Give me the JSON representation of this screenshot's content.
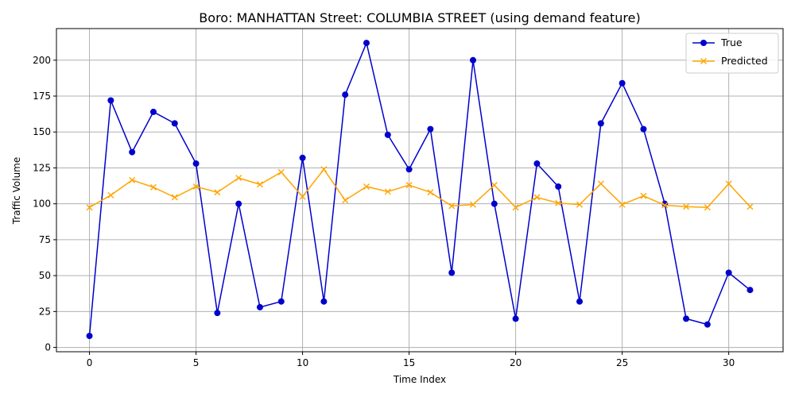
{
  "chart_data": {
    "type": "line",
    "title": "Boro: MANHATTAN Street: COLUMBIA STREET (using demand feature)",
    "xlabel": "Time Index",
    "ylabel": "Traffic Volume",
    "xlim": [
      -1.55,
      32.55
    ],
    "ylim": [
      -3,
      222
    ],
    "xticks": [
      0,
      5,
      10,
      15,
      20,
      25,
      30
    ],
    "yticks": [
      0,
      25,
      50,
      75,
      100,
      125,
      150,
      175,
      200
    ],
    "grid": true,
    "legend": "top-right",
    "x": [
      0,
      1,
      2,
      3,
      4,
      5,
      6,
      7,
      8,
      9,
      10,
      11,
      12,
      13,
      14,
      15,
      16,
      17,
      18,
      19,
      20,
      21,
      22,
      23,
      24,
      25,
      26,
      27,
      28,
      29,
      30,
      31
    ],
    "series": [
      {
        "name": "True",
        "color": "#0000cd",
        "marker": "circle",
        "values": [
          8,
          172,
          136,
          164,
          156,
          128,
          24,
          100,
          28,
          32,
          132,
          32,
          176,
          212,
          148,
          124,
          152,
          52,
          200,
          100,
          20,
          128,
          112,
          32,
          156,
          184,
          152,
          100,
          20,
          16,
          52,
          40
        ]
      },
      {
        "name": "Predicted",
        "color": "#ffa500",
        "marker": "x",
        "values": [
          97.5,
          106,
          116.5,
          111.5,
          104.5,
          112,
          108,
          118,
          113.5,
          122,
          105,
          124,
          102.5,
          112,
          108.5,
          113,
          108,
          98.5,
          99.5,
          113,
          97.5,
          104.5,
          100.5,
          99.5,
          114,
          99.5,
          105.5,
          99,
          98,
          97.5,
          114,
          98
        ]
      }
    ]
  }
}
